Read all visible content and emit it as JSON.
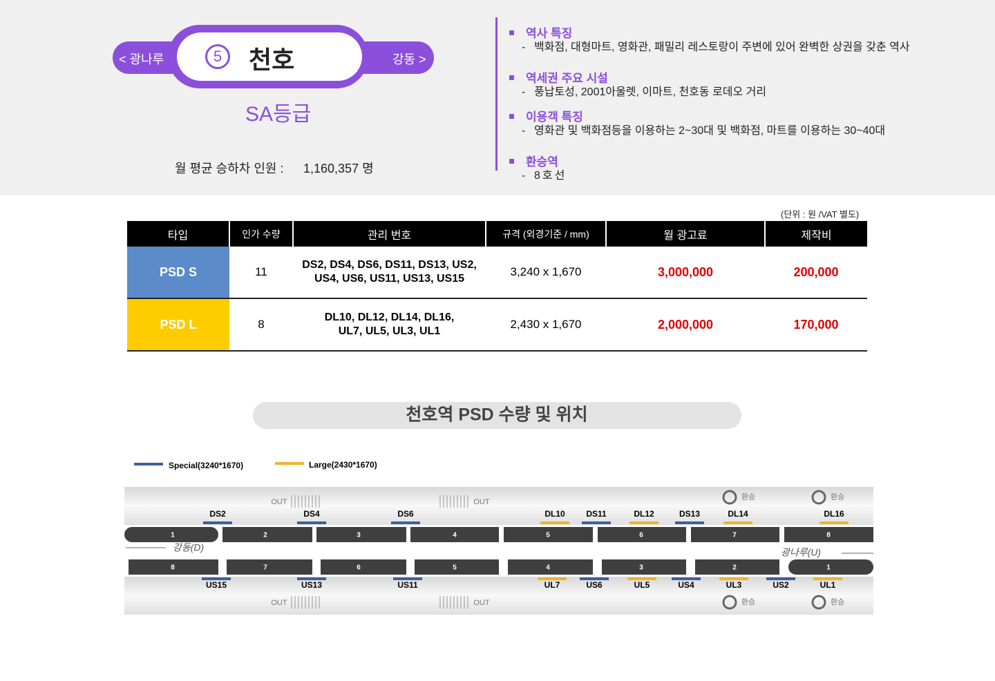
{
  "station": {
    "prev": "< 광나루",
    "number": "5",
    "name": "천호",
    "next": "강동 >",
    "grade": "SA등급",
    "ridership_label": "월 평균 승하차 인원 :",
    "ridership": "1,160,357 명"
  },
  "features": [
    {
      "heading": "역사 특징",
      "items": [
        "백화점, 대형마트, 영화관, 패밀리 레스토랑이 주변에 있어 완벽한 상권을 갖춘 역사"
      ]
    },
    {
      "heading": "역세권 주요 시설",
      "items": [
        "풍납토성, 2001아울렛, 이마트, 천호동 로데오 거리"
      ]
    },
    {
      "heading": "이용객 특징",
      "items": [
        "영화관 및 백화점등을 이용하는 2~30대 및 백화점, 마트를 이용하는 30~40대"
      ]
    },
    {
      "heading": "환승역",
      "items": [
        "8호선"
      ]
    }
  ],
  "table": {
    "unit": "(단위 : 원 /VAT 별도)",
    "header": [
      "타입",
      "인가 수량",
      "관리 번호",
      "규격 (외경기준 / mm)",
      "월 광고료",
      "제작비"
    ],
    "rows": [
      [
        "PSD S",
        "11",
        "DS2, DS4, DS6, DS11, DS13, US2, US4, US6, US11, US13, US15",
        "3,240 x 1,670",
        "3,000,000",
        "200,000"
      ],
      [
        "PSD L",
        "8",
        "DL10, DL12, DL14, DL16, UL7, UL5, UL3, UL1",
        "2,430 x 1,670",
        "2,000,000",
        "170,000"
      ]
    ]
  },
  "diagram": {
    "title": "천호역 PSD 수량 및 위치",
    "legend": [
      "Special(3240*1670)",
      "Large(2430*1670)"
    ],
    "top_labels": [
      "DS2",
      "DS4",
      "DS6",
      "DL10",
      "DS11",
      "DL12",
      "DS13",
      "DL14",
      "DL16"
    ],
    "top_cars": [
      "1",
      "2",
      "3",
      "4",
      "5",
      "6",
      "7",
      "8"
    ],
    "bottom_cars": [
      "8",
      "7",
      "6",
      "5",
      "4",
      "3",
      "2",
      "1"
    ],
    "bottom_labels": [
      "US15",
      "US13",
      "US11",
      "UL7",
      "US6",
      "UL5",
      "US4",
      "UL3",
      "US2",
      "UL1"
    ],
    "direction_left": "강동(D)",
    "direction_right": "광나루(U)",
    "out": "OUT",
    "transfer": "환승"
  }
}
